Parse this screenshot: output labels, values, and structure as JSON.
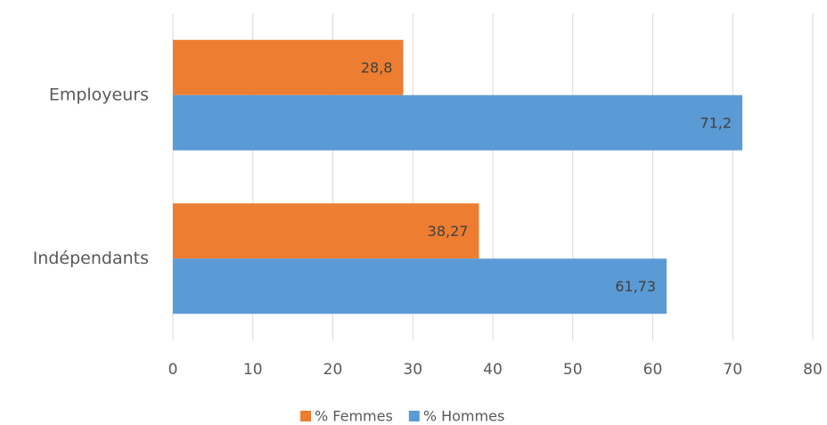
{
  "chart_data": {
    "type": "hbar",
    "categories": [
      "Employeurs",
      "Indépendants"
    ],
    "series": [
      {
        "name": "% Femmes",
        "color": "#ed7d31",
        "values": [
          28.8,
          38.27
        ],
        "value_labels": [
          "28,8",
          "38,27"
        ]
      },
      {
        "name": "% Hommes",
        "color": "#5b9bd5",
        "values": [
          71.2,
          61.73
        ],
        "value_labels": [
          "71,2",
          "61,73"
        ]
      }
    ],
    "xlim": [
      0,
      80
    ],
    "xticks": [
      0,
      10,
      20,
      30,
      40,
      50,
      60,
      70,
      80
    ],
    "grid": true,
    "legend": "bottom"
  }
}
